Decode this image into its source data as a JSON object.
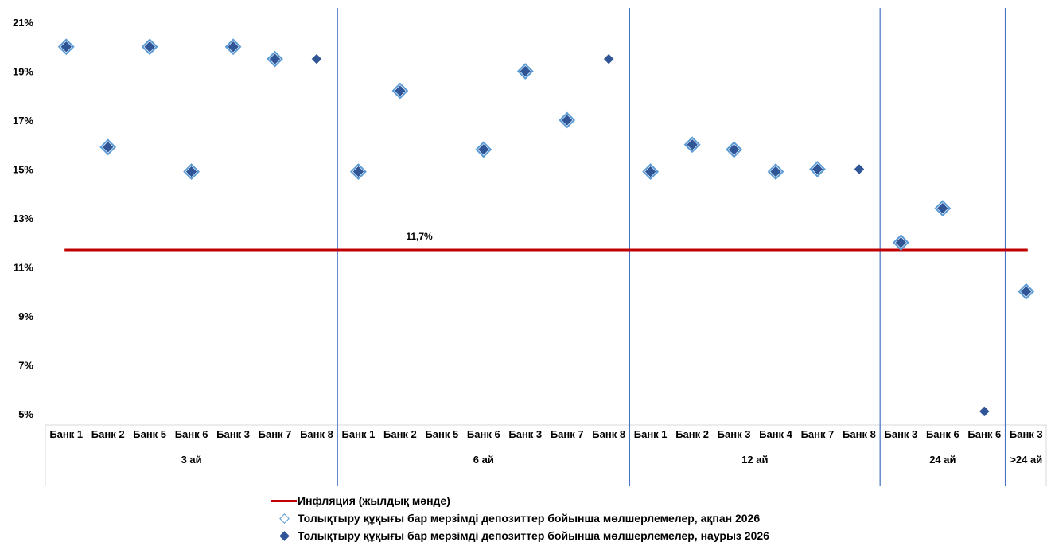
{
  "chart_data": {
    "type": "scatter",
    "ylim": [
      5,
      21
    ],
    "yticks": [
      "5%",
      "7%",
      "9%",
      "11%",
      "13%",
      "15%",
      "17%",
      "19%",
      "21%"
    ],
    "categories": [
      "Банк 1",
      "Банк 2",
      "Банк 5",
      "Банк 6",
      "Банк 3",
      "Банк 7",
      "Банк 8",
      "Банк 1",
      "Банк 2",
      "Банк 5",
      "Банк 6",
      "Банк 3",
      "Банк 7",
      "Банк 8",
      "Банк 1",
      "Банк 2",
      "Банк 3",
      "Банк 4",
      "Банк 7",
      "Банк 8",
      "Банк 3",
      "Банк 6",
      "Банк 6",
      "Банк 3"
    ],
    "groups": [
      {
        "label": "3 ай",
        "count": 7
      },
      {
        "label": "6 ай",
        "count": 7
      },
      {
        "label": "12 ай",
        "count": 6
      },
      {
        "label": "24 ай",
        "count": 3
      },
      {
        "label": ">24 ай",
        "count": 1
      }
    ],
    "series": [
      {
        "name": "Инфляция (жылдық мәнде)",
        "type": "line",
        "value": 11.7,
        "label": "11,7%",
        "color": "#c00000"
      },
      {
        "name": "Толықтыру құқығы бар мерзімді депозиттер бойынша мөлшерлемелер, ақпан 2026",
        "type": "scatter",
        "marker": "diamond-hollow",
        "color": "#5b9bd5",
        "values": [
          20,
          15.9,
          20,
          14.9,
          20,
          19.5,
          null,
          14.9,
          18.2,
          null,
          15.8,
          19,
          17,
          null,
          14.9,
          16,
          15.8,
          14.9,
          15,
          null,
          12,
          13.4,
          null,
          10
        ]
      },
      {
        "name": "Толықтыру құқығы бар мерзімді депозиттер бойынша мөлшерлемелер, наурыз 2026",
        "type": "scatter",
        "marker": "diamond-filled",
        "color": "#2f5597",
        "values": [
          20,
          15.9,
          20,
          14.9,
          20,
          19.5,
          19.5,
          14.9,
          18.2,
          null,
          15.8,
          19,
          17,
          19.5,
          14.9,
          16,
          15.8,
          14.9,
          15,
          15,
          12,
          13.4,
          5.1,
          10
        ]
      }
    ]
  }
}
